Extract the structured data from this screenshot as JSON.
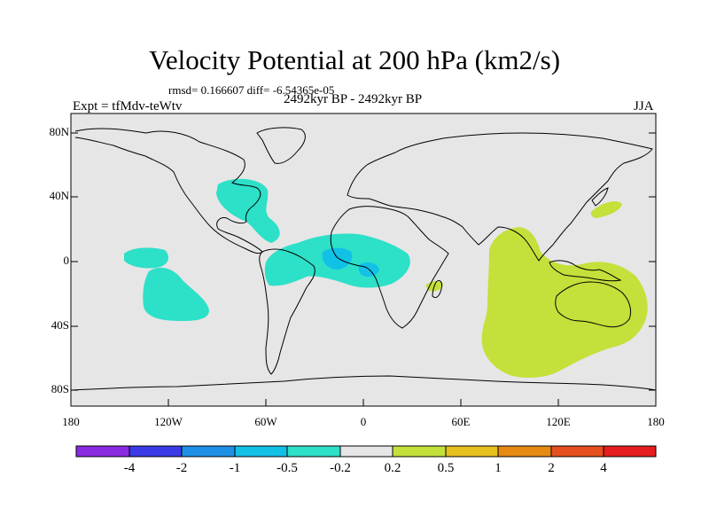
{
  "title": "Velocity Potential at 200 hPa (km2/s)",
  "stats": "rmsd= 0.166607 diff= -6.54365e-05",
  "experiment": "Expt = tfMdv-teWtv",
  "period": "2492kyr BP - 2492kyr BP",
  "season": "JJA",
  "lat_ticks": [
    "80N",
    "40N",
    "0",
    "40S",
    "80S"
  ],
  "lon_ticks": [
    "180",
    "120W",
    "60W",
    "0",
    "60E",
    "120E",
    "180"
  ],
  "colorbar": {
    "labels": [
      "-4",
      "-2",
      "-1",
      "-0.5",
      "-0.2",
      "0.2",
      "0.5",
      "1",
      "2",
      "4"
    ],
    "colors": [
      "#8a2be2",
      "#3a3ae6",
      "#1e90e6",
      "#12c1e6",
      "#2de0c8",
      "#e6e6e6",
      "#c4e03a",
      "#e6c01e",
      "#e68a14",
      "#e6501e",
      "#e61e1e"
    ]
  },
  "map": {
    "background_color": "#e6e6e6",
    "negative_color": "#2de0c8",
    "negative_core_color": "#12c1e6",
    "positive_color": "#c4e03a"
  }
}
